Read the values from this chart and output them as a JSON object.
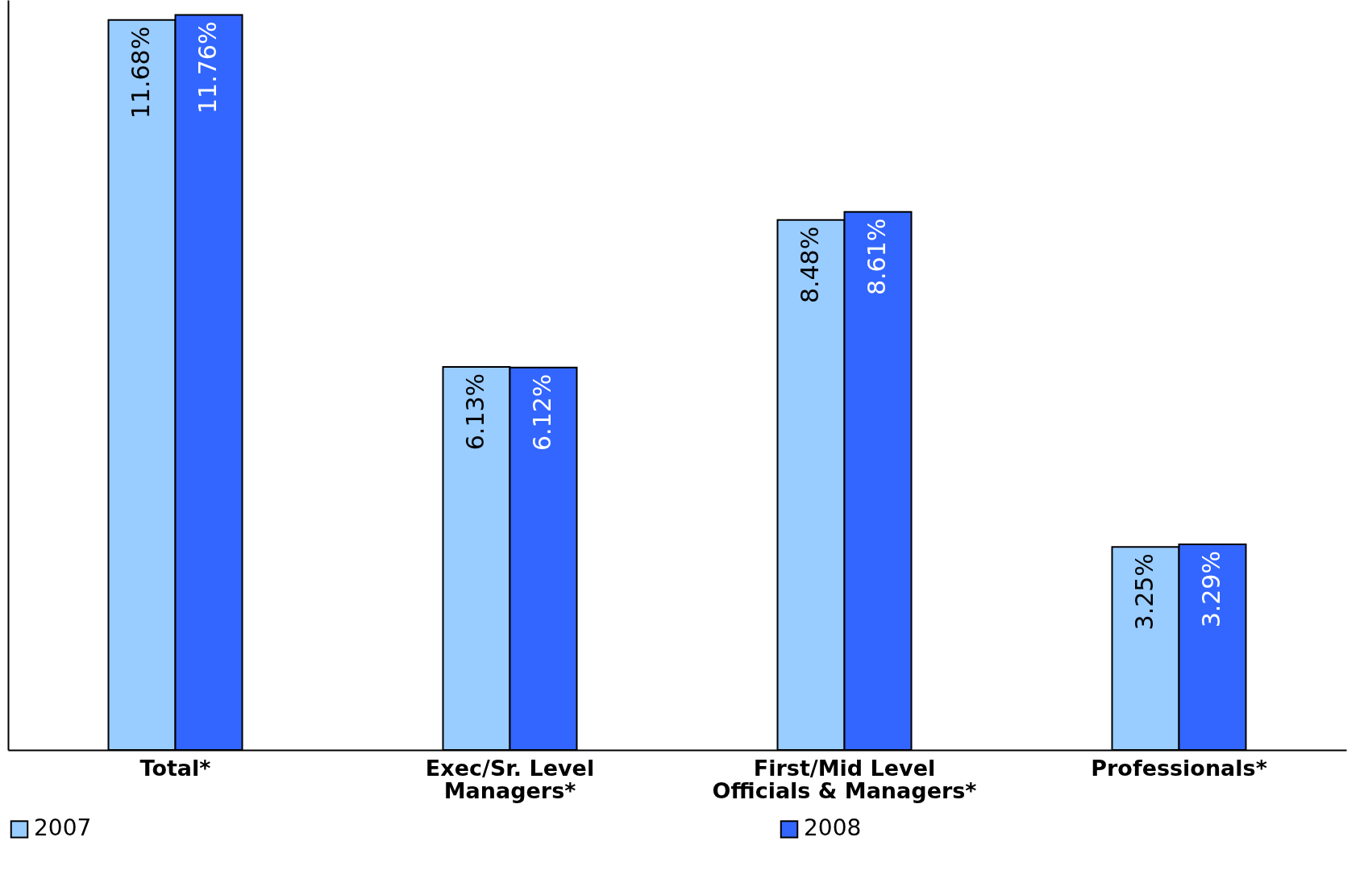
{
  "chart_data": {
    "type": "bar",
    "categories": [
      "Total*",
      "Exec/Sr. Level Managers*",
      "First/Mid Level Officials & Managers*",
      "Professionals*"
    ],
    "series": [
      {
        "name": "2007",
        "color": "#99ccff",
        "values": [
          11.68,
          6.13,
          8.48,
          3.25
        ],
        "value_labels": [
          "11.68%",
          "6.13%",
          "8.48%",
          "3.25%"
        ]
      },
      {
        "name": "2008",
        "color": "#3366ff",
        "values": [
          11.76,
          6.12,
          8.61,
          3.29
        ],
        "value_labels": [
          "11.76%",
          "6.12%",
          "8.61%",
          "3.29%"
        ]
      }
    ],
    "legend": "bottom",
    "grid": false
  }
}
